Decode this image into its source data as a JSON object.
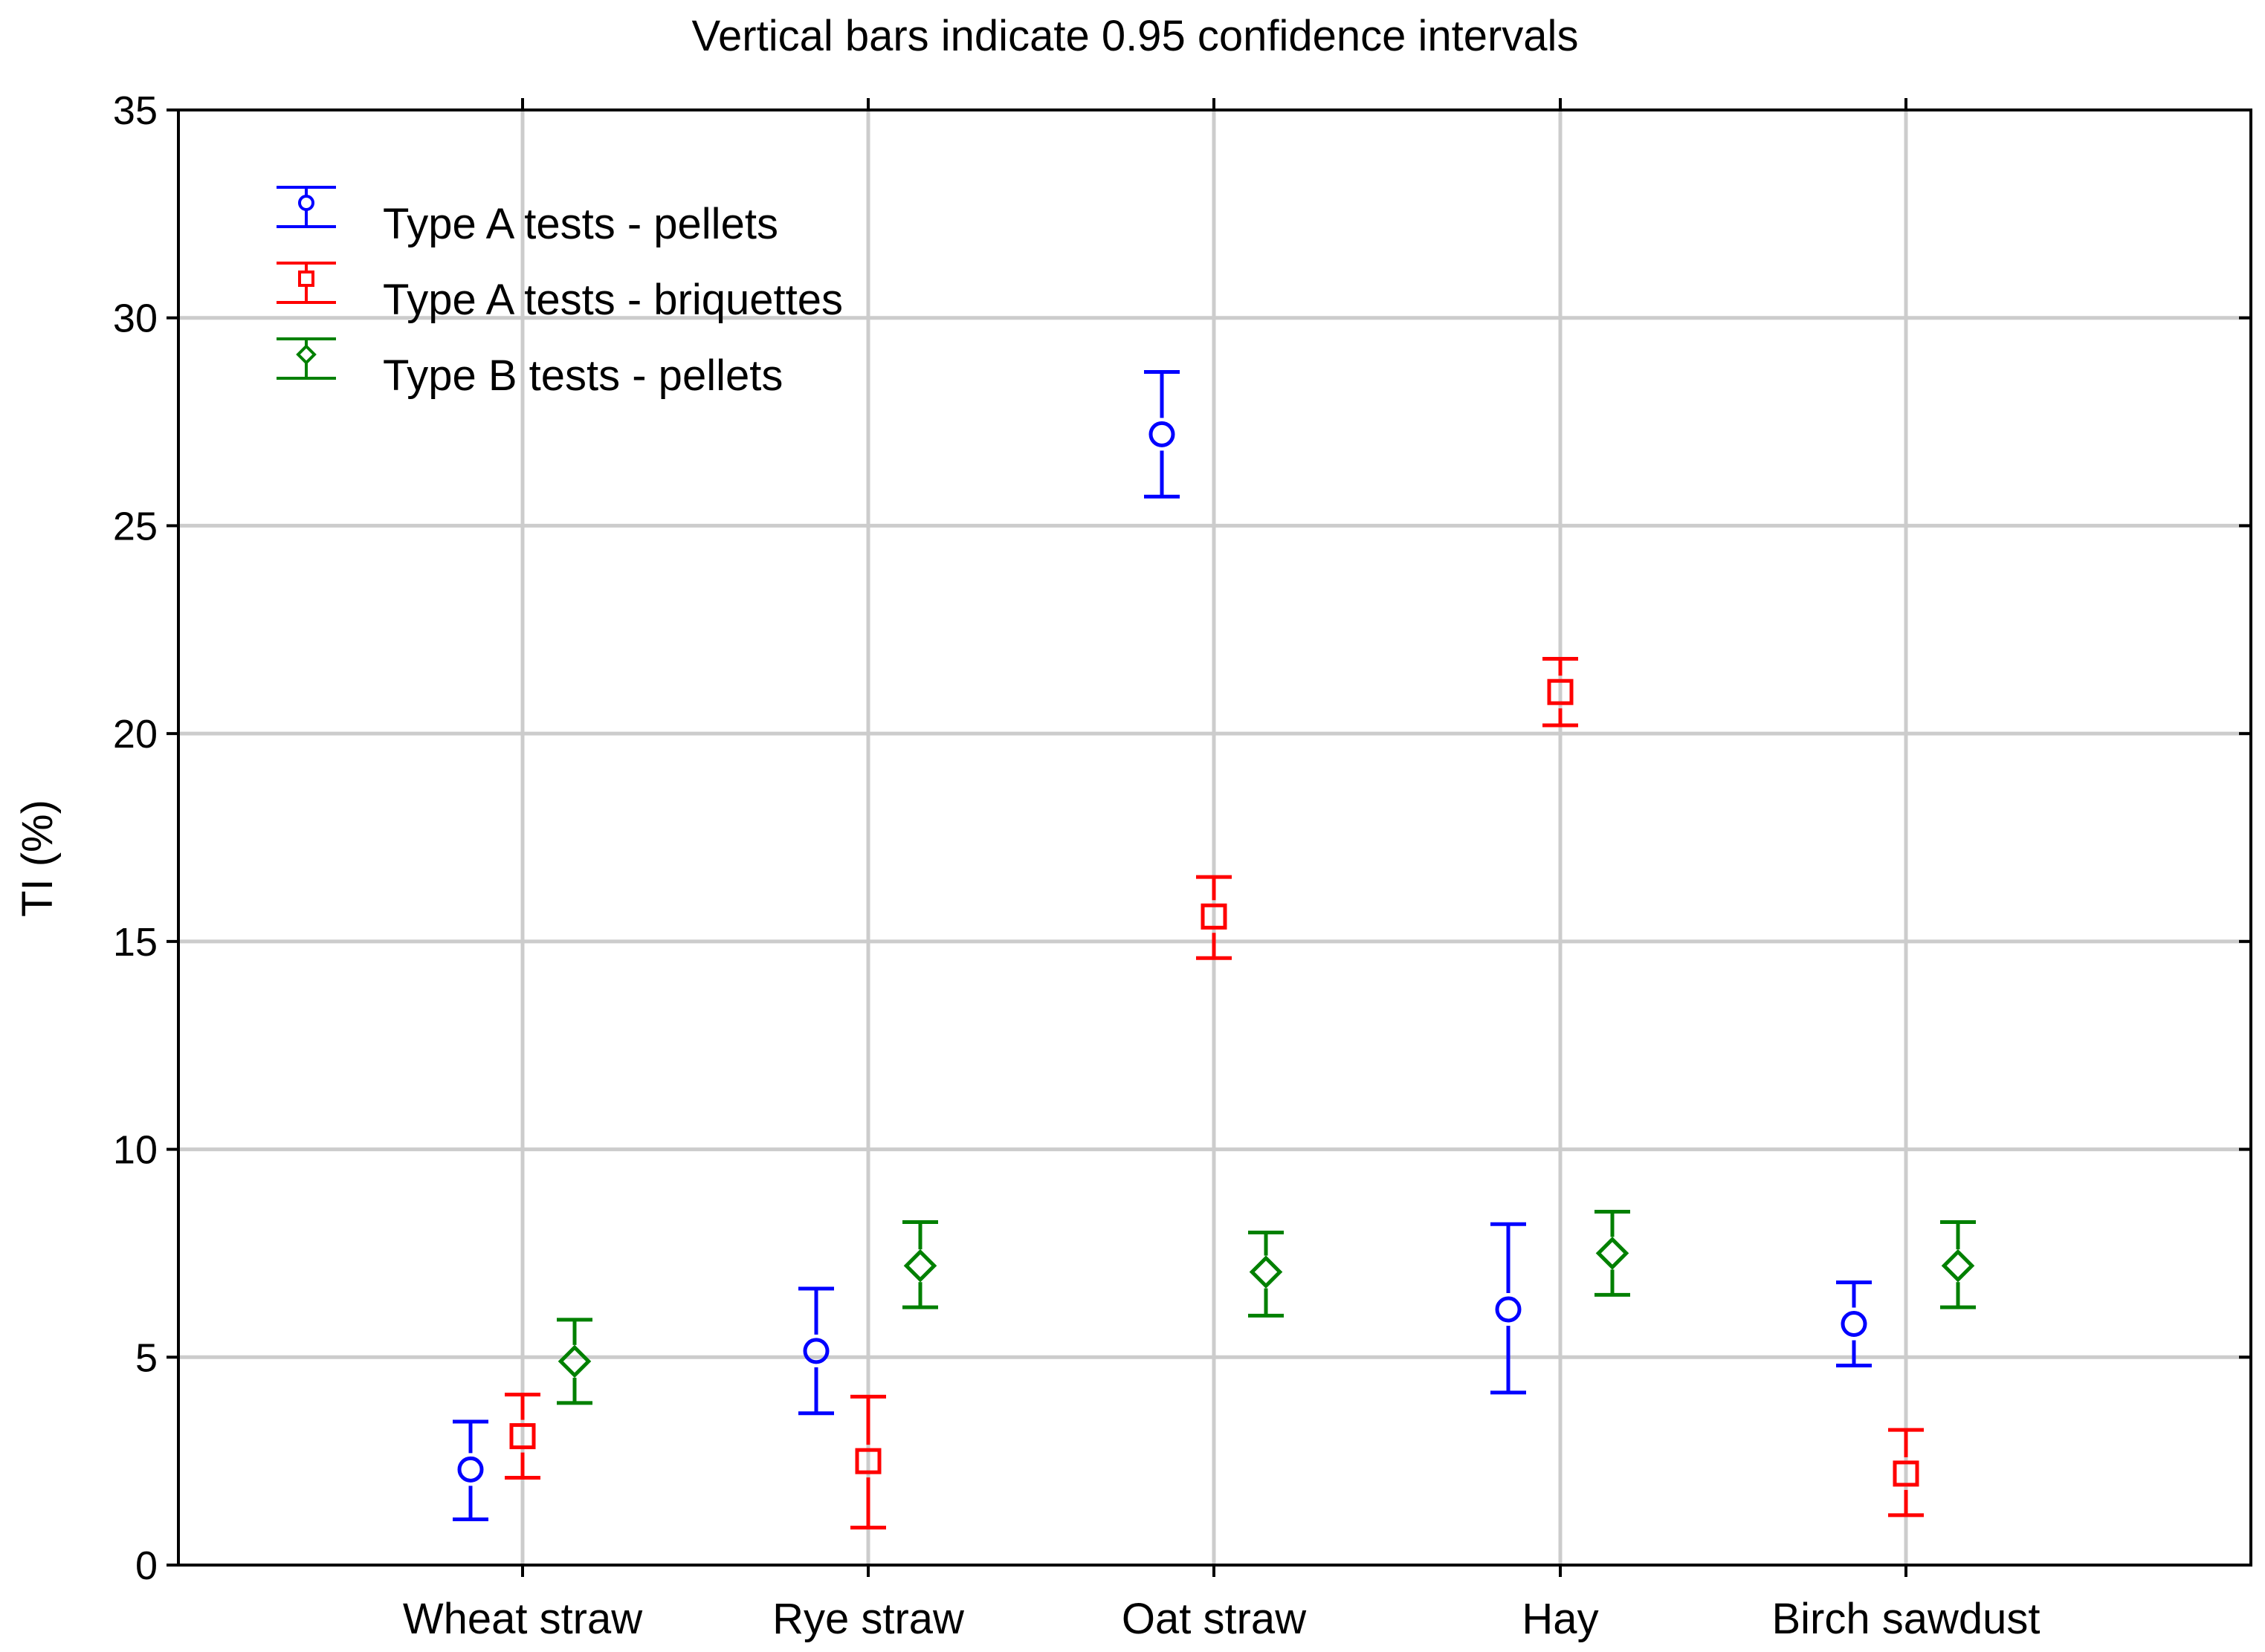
{
  "chart_data": {
    "type": "scatter",
    "title": "Vertical bars indicate 0.95 confidence intervals",
    "xlabel": "",
    "ylabel": "TI (%)",
    "ylim": [
      0,
      35
    ],
    "yticks": [
      0,
      5,
      10,
      15,
      20,
      25,
      30,
      35
    ],
    "grid": true,
    "legend_position": "top-left",
    "categories": [
      "Wheat straw",
      "Rye straw",
      "Oat straw",
      "Hay",
      "Birch sawdust"
    ],
    "series": [
      {
        "name": "Type A tests - pellets",
        "color": "#0000ff",
        "marker": "circle",
        "values": [
          2.3,
          5.15,
          27.2,
          6.15,
          5.8
        ],
        "lower": [
          1.1,
          3.65,
          25.7,
          4.15,
          4.8
        ],
        "upper": [
          3.45,
          6.65,
          28.7,
          8.2,
          6.8
        ]
      },
      {
        "name": "Type A tests - briquettes",
        "color": "#ff0000",
        "marker": "square",
        "values": [
          3.1,
          2.5,
          15.6,
          21.0,
          2.2
        ],
        "lower": [
          2.1,
          0.9,
          14.6,
          20.2,
          1.2
        ],
        "upper": [
          4.1,
          4.05,
          16.55,
          21.8,
          3.25
        ]
      },
      {
        "name": "Type B tests - pellets",
        "color": "#008000",
        "marker": "diamond",
        "values": [
          4.9,
          7.2,
          7.05,
          7.5,
          7.2
        ],
        "lower": [
          3.9,
          6.2,
          6.0,
          6.5,
          6.2
        ],
        "upper": [
          5.9,
          8.25,
          8.0,
          8.5,
          8.25
        ]
      }
    ]
  }
}
